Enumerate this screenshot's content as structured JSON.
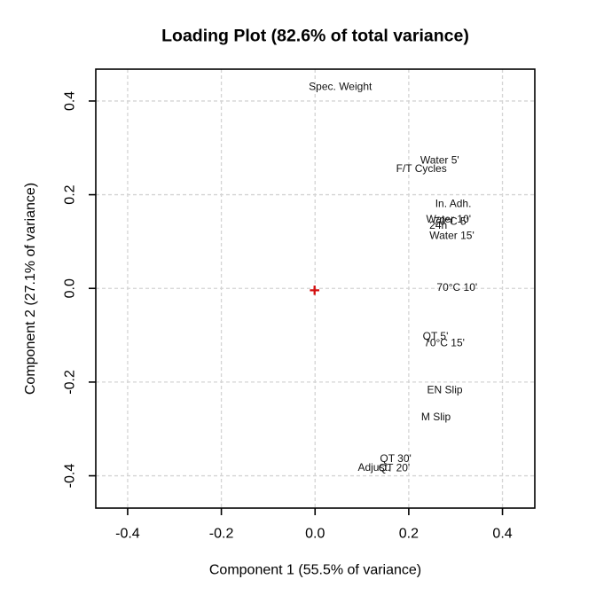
{
  "chart_data": {
    "type": "scatter",
    "title": "Loading Plot (82.6% of total variance)",
    "xlabel": "Component 1 (55.5% of variance)",
    "ylabel": "Component 2 (27.1% of variance)",
    "xlim": [
      -0.468,
      0.469
    ],
    "ylim": [
      -0.469,
      0.468
    ],
    "xticks": [
      -0.4,
      -0.2,
      0.0,
      0.2,
      0.4
    ],
    "yticks": [
      -0.4,
      -0.2,
      0.0,
      0.2,
      0.4
    ],
    "xtick_labels": [
      "-0.4",
      "-0.2",
      "0.0",
      "0.2",
      "0.4"
    ],
    "ytick_labels": [
      "-0.4",
      "-0.2",
      "0.0",
      "0.2",
      "0.4"
    ],
    "grid": "dashed lightgray at every tick",
    "legend": "none",
    "points": [
      {
        "label": "Spec. Weight",
        "x": 0.054,
        "y": 0.431
      },
      {
        "label": "Water 5'",
        "x": 0.266,
        "y": 0.274
      },
      {
        "label": "F/T Cycles",
        "x": 0.227,
        "y": 0.256
      },
      {
        "label": "In. Adh.",
        "x": 0.295,
        "y": 0.181
      },
      {
        "label": "Water 10'",
        "x": 0.285,
        "y": 0.148
      },
      {
        "label": "70°C 5'",
        "x": 0.29,
        "y": 0.143
      },
      {
        "label": "24h",
        "x": 0.263,
        "y": 0.135
      },
      {
        "label": "Water 15'",
        "x": 0.292,
        "y": 0.113
      },
      {
        "label": "70°C 10'",
        "x": 0.303,
        "y": 0.002
      },
      {
        "label": "QT 5'",
        "x": 0.257,
        "y": -0.102
      },
      {
        "label": "70°C 15'",
        "x": 0.276,
        "y": -0.116
      },
      {
        "label": "EN Slip",
        "x": 0.277,
        "y": -0.216
      },
      {
        "label": "M Slip",
        "x": 0.258,
        "y": -0.274
      },
      {
        "label": "QT 30'",
        "x": 0.172,
        "y": -0.363
      },
      {
        "label": "Adjust.",
        "x": 0.126,
        "y": -0.382
      },
      {
        "label": "QT 20'",
        "x": 0.169,
        "y": -0.383
      }
    ],
    "origin_marker": {
      "symbol": "+",
      "x": -0.001,
      "y": -0.004,
      "color": "#d40f0f"
    },
    "colors": {
      "background": "#ffffff",
      "box_border": "#000000",
      "grid": "#d4d4d4",
      "text": "#000000",
      "point_labels": "#111111",
      "origin_marker": "#d40f0f"
    }
  }
}
